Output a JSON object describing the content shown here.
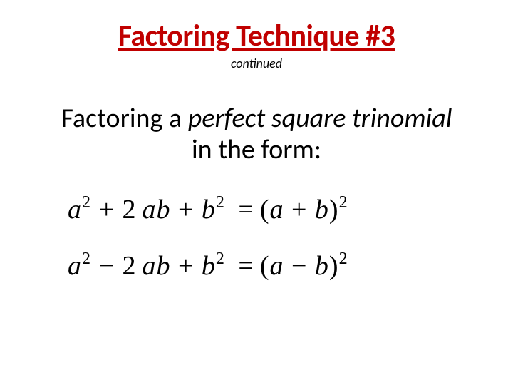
{
  "title": {
    "text": "Factoring Technique #3",
    "color": "#c00000",
    "fontsize": 42
  },
  "subtitle": {
    "text": "continued",
    "color": "#000000",
    "fontsize": 18
  },
  "description": {
    "prefix": "Factoring a ",
    "emphasis": "perfect square trinomial",
    "suffix": "in the form:",
    "color": "#000000",
    "fontsize": 38
  },
  "formulas": {
    "color": "#000000",
    "fontsize": 38,
    "items": [
      {
        "a_term": "a",
        "a_exp": "2",
        "op1": "+",
        "mid_coef": "2",
        "mid_var1": "a",
        "mid_var2": "b",
        "op2": "+",
        "b_term": "b",
        "b_exp": "2",
        "eq": "=",
        "lparen": "(",
        "rvar1": "a",
        "rop": "+",
        "rvar2": "b",
        "rparen": ")",
        "r_exp": "2"
      },
      {
        "a_term": "a",
        "a_exp": "2",
        "op1": "−",
        "mid_coef": "2",
        "mid_var1": "a",
        "mid_var2": "b",
        "op2": "+",
        "b_term": "b",
        "b_exp": "2",
        "eq": "=",
        "lparen": "(",
        "rvar1": "a",
        "rop": "−",
        "rvar2": "b",
        "rparen": ")",
        "r_exp": "2"
      }
    ]
  },
  "background_color": "#ffffff"
}
